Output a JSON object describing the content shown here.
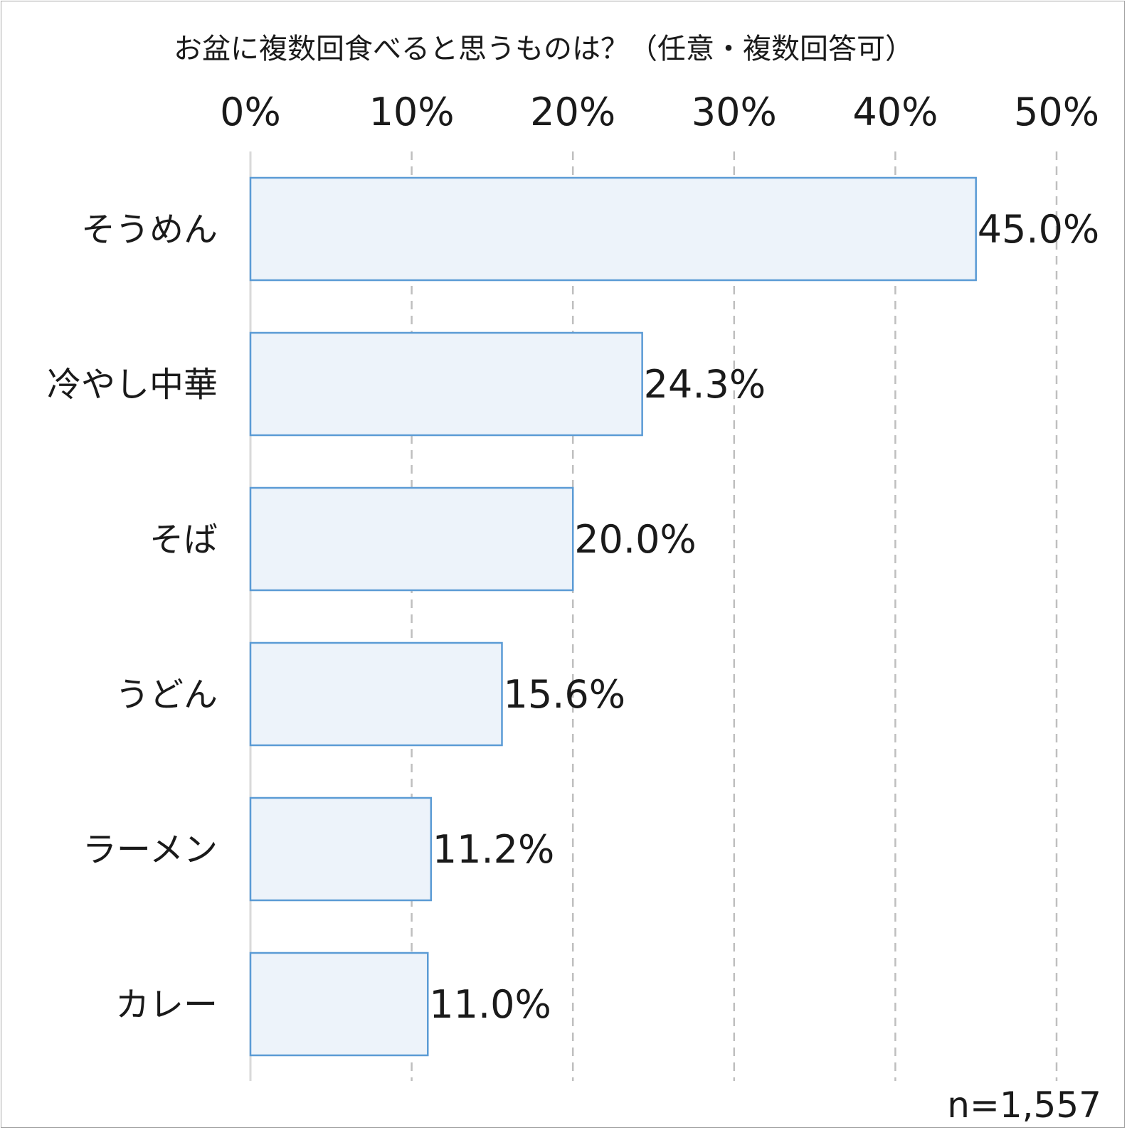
{
  "chart_data": {
    "type": "bar",
    "orientation": "horizontal",
    "title": "お盆に複数回食べると思うものは？（任意・複数回答可）",
    "categories": [
      "そうめん",
      "冷やし中華",
      "そば",
      "うどん",
      "ラーメン",
      "カレー"
    ],
    "values": [
      45.0,
      24.3,
      20.0,
      15.6,
      11.2,
      11.0
    ],
    "value_labels": [
      "45.0%",
      "24.3%",
      "20.0%",
      "15.6%",
      "11.2%",
      "11.0%"
    ],
    "xlim": [
      0,
      50
    ],
    "x_ticks": [
      0,
      10,
      20,
      30,
      40,
      50
    ],
    "x_tick_labels": [
      "0%",
      "10%",
      "20%",
      "30%",
      "40%",
      "50%"
    ],
    "x_axis_position": "top",
    "grid": "vertical dashed",
    "legend": "none",
    "note": "n=1,557",
    "colors": {
      "bar_fill": "#edf3fa",
      "bar_stroke": "#5b9bd5",
      "grid": "#bfbfbf",
      "axis": "#d9d9d9",
      "text": "#1a1a1a"
    }
  }
}
